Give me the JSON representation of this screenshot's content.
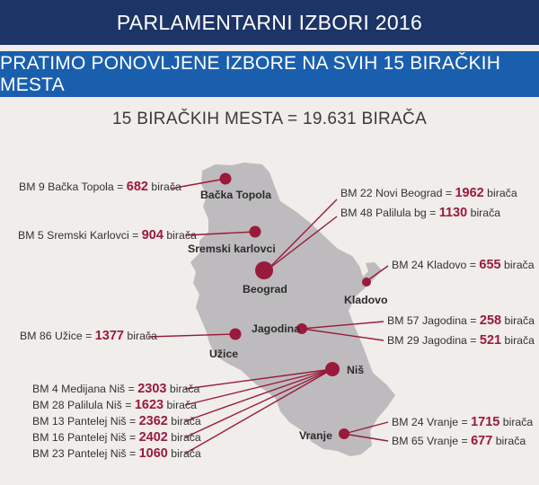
{
  "header": {
    "title": "PARLAMENTARNI IZBORI 2016",
    "subtitle": "PRATIMO PONOVLJENE IZBORE NA SVIH 15 BIRAČKIH MESTA"
  },
  "summary": "15 BIRAČKIH MESTA = 19.631 BIRAČA",
  "colors": {
    "dark_blue": "#1d3466",
    "blue": "#1a5fae",
    "marker": "#9a1a3c",
    "map": "#bdbbbd"
  },
  "cities": {
    "backa_topola": "Bačka Topola",
    "sremski_karlovci": "Sremski karlovci",
    "beograd": "Beograd",
    "kladovo": "Kladovo",
    "jagodina": "Jagodina",
    "uzice": "Užice",
    "nis": "Niš",
    "vranje": "Vranje"
  },
  "polling_stations": {
    "bm9": {
      "name": "BM 9 Bačka Topola =",
      "value": "682",
      "unit": "birača"
    },
    "bm5": {
      "name": "BM 5 Sremski Karlovci =",
      "value": "904",
      "unit": "birača"
    },
    "bm22": {
      "name": "BM 22 Novi Beograd =",
      "value": "1962",
      "unit": "birača"
    },
    "bm48": {
      "name": "BM 48 Palilula bg =",
      "value": "1130",
      "unit": "birača"
    },
    "bm24k": {
      "name": "BM 24 Kladovo =",
      "value": "655",
      "unit": "birača"
    },
    "bm57": {
      "name": "BM 57 Jagodina =",
      "value": "258",
      "unit": "birača"
    },
    "bm29": {
      "name": "BM 29 Jagodina =",
      "value": "521",
      "unit": "birača"
    },
    "bm86": {
      "name": "BM 86 Užice =",
      "value": "1377",
      "unit": "birača"
    },
    "bm4": {
      "name": "BM  4 Medijana Niš =",
      "value": "2303",
      "unit": "birača"
    },
    "bm28": {
      "name": "BM 28 Palilula Niš =",
      "value": "1623",
      "unit": "birača"
    },
    "bm13": {
      "name": "BM 13 Pantelej Niš =",
      "value": "2362",
      "unit": "birača"
    },
    "bm16": {
      "name": "BM 16 Pantelej Niš =",
      "value": "2402",
      "unit": "birača"
    },
    "bm23": {
      "name": "BM 23 Pantelej Niš =",
      "value": "1060",
      "unit": "birača"
    },
    "bm24v": {
      "name": "BM 24 Vranje =",
      "value": "1715",
      "unit": "birača"
    },
    "bm65": {
      "name": "BM 65 Vranje =",
      "value": "677",
      "unit": "birača"
    }
  }
}
